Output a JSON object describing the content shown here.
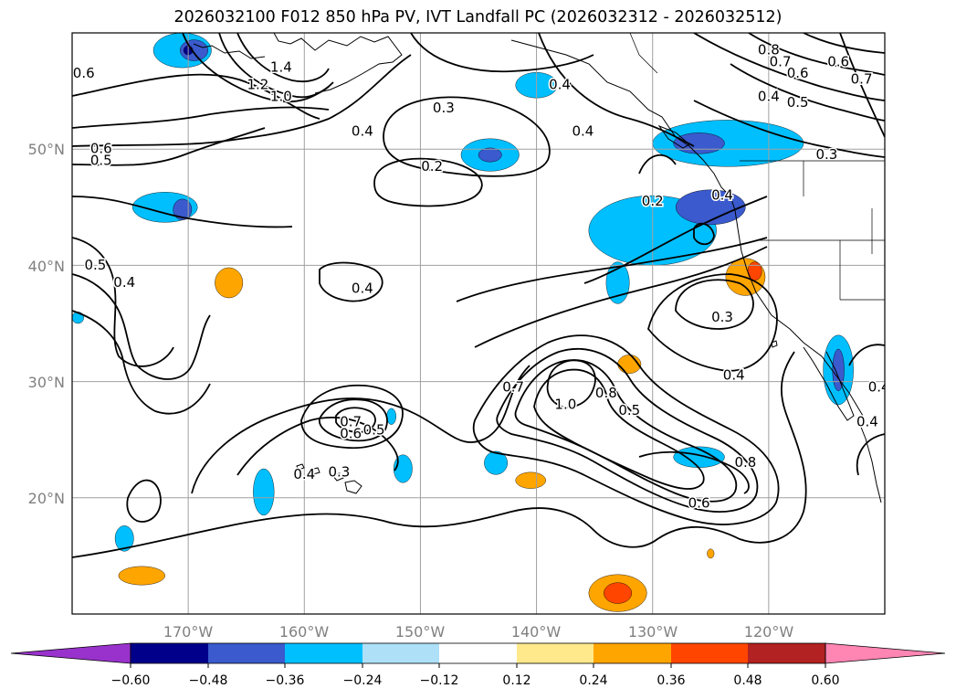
{
  "figure": {
    "title": "2026032100 F012 850 hPa PV, IVT Landfall PC (2026032312 - 2026032512)"
  },
  "axes": {
    "lon_labels": [
      "170°W",
      "160°W",
      "150°W",
      "140°W",
      "130°W",
      "120°W"
    ],
    "lat_labels": [
      "50°N",
      "40°N",
      "30°N",
      "20°N"
    ],
    "extent": {
      "lon_min": -180,
      "lon_max": -110,
      "lat_min": 10,
      "lat_max": 60
    }
  },
  "colorbar": {
    "tick_labels": [
      "−0.60",
      "−0.48",
      "−0.36",
      "−0.24",
      "−0.12",
      "0.12",
      "0.24",
      "0.36",
      "0.48",
      "0.60"
    ],
    "bin_colors": [
      "#9932cc",
      "#00008b",
      "#3a5acd",
      "#00bfff",
      "#aee0f8",
      "#ffffff",
      "#ffe98a",
      "#ffa500",
      "#ff4500",
      "#b22222",
      "#ff85b3"
    ]
  },
  "contour_labels": [
    {
      "text": "0.6",
      "lon": -179,
      "lat": 56.5
    },
    {
      "text": "1.4",
      "lon": -162,
      "lat": 57
    },
    {
      "text": "1.2",
      "lon": -164,
      "lat": 55.5
    },
    {
      "text": "1.0",
      "lon": -162,
      "lat": 54.5
    },
    {
      "text": "0.4",
      "lon": -138,
      "lat": 55.5
    },
    {
      "text": "0.3",
      "lon": -148,
      "lat": 53.5
    },
    {
      "text": "0.4",
      "lon": -155,
      "lat": 51.5
    },
    {
      "text": "0.4",
      "lon": -136,
      "lat": 51.5
    },
    {
      "text": "0.6",
      "lon": -177.5,
      "lat": 50
    },
    {
      "text": "0.5",
      "lon": -177.5,
      "lat": 49
    },
    {
      "text": "0.2",
      "lon": -149,
      "lat": 48.5
    },
    {
      "text": "0.2",
      "lon": -130,
      "lat": 45.5
    },
    {
      "text": "0.4",
      "lon": -124,
      "lat": 46
    },
    {
      "text": "0.8",
      "lon": -120,
      "lat": 58.5
    },
    {
      "text": "0.7",
      "lon": -119,
      "lat": 57.5
    },
    {
      "text": "0.6",
      "lon": -117.5,
      "lat": 56.5
    },
    {
      "text": "0.4",
      "lon": -120,
      "lat": 54.5
    },
    {
      "text": "0.5",
      "lon": -117.5,
      "lat": 54
    },
    {
      "text": "0.3",
      "lon": -115,
      "lat": 49.5
    },
    {
      "text": "0.6",
      "lon": -114,
      "lat": 57.5
    },
    {
      "text": "0.7",
      "lon": -112,
      "lat": 56
    },
    {
      "text": "0.5",
      "lon": -178,
      "lat": 40
    },
    {
      "text": "0.4",
      "lon": -175.5,
      "lat": 38.5
    },
    {
      "text": "0.4",
      "lon": -155,
      "lat": 38
    },
    {
      "text": "0.3",
      "lon": -124,
      "lat": 35.5
    },
    {
      "text": "0.4",
      "lon": -123,
      "lat": 30.5
    },
    {
      "text": "0.7",
      "lon": -142,
      "lat": 29.5
    },
    {
      "text": "1.0",
      "lon": -137.5,
      "lat": 28
    },
    {
      "text": "0.8",
      "lon": -134,
      "lat": 29
    },
    {
      "text": "0.5",
      "lon": -132,
      "lat": 27.5
    },
    {
      "text": "0.7",
      "lon": -156,
      "lat": 26.5
    },
    {
      "text": "0.6",
      "lon": -156,
      "lat": 25.5
    },
    {
      "text": "0.5",
      "lon": -154,
      "lat": 25.8
    },
    {
      "text": "0.4",
      "lon": -160,
      "lat": 22
    },
    {
      "text": "0.3",
      "lon": -157,
      "lat": 22.2
    },
    {
      "text": "0.6",
      "lon": -126,
      "lat": 19.5
    },
    {
      "text": "0.8",
      "lon": -122,
      "lat": 23
    },
    {
      "text": "0.4",
      "lon": -110.5,
      "lat": 29.5
    },
    {
      "text": "0.4",
      "lon": -111.5,
      "lat": 26.5
    }
  ],
  "shaded_regions": [
    {
      "id": "p1",
      "color": "#00bfff",
      "lon": -170.5,
      "lat": 58.5,
      "rlon": 2.5,
      "rlat": 1.5
    },
    {
      "id": "p2",
      "color": "#3a5acd",
      "lon": -169.5,
      "lat": 58.5,
      "rlon": 1.2,
      "rlat": 0.9
    },
    {
      "id": "p3",
      "color": "#00008b",
      "lon": -170,
      "lat": 58.5,
      "rlon": 0.4,
      "rlat": 0.4
    },
    {
      "id": "p4",
      "color": "#00bfff",
      "lon": -172,
      "lat": 45,
      "rlon": 2.8,
      "rlat": 1.3
    },
    {
      "id": "p5",
      "color": "#3a5acd",
      "lon": -170.5,
      "lat": 44.8,
      "rlon": 0.8,
      "rlat": 0.9
    },
    {
      "id": "p6",
      "color": "#00bfff",
      "lon": -144,
      "lat": 49.5,
      "rlon": 2.5,
      "rlat": 1.4
    },
    {
      "id": "p7",
      "color": "#3a5acd",
      "lon": -144,
      "lat": 49.5,
      "rlon": 1.0,
      "rlat": 0.6
    },
    {
      "id": "p8",
      "color": "#00bfff",
      "lon": -140,
      "lat": 55.5,
      "rlon": 1.8,
      "rlat": 1.1
    },
    {
      "id": "p9",
      "color": "#00bfff",
      "lon": -123.5,
      "lat": 50.5,
      "rlon": 6.5,
      "rlat": 2.0
    },
    {
      "id": "p10",
      "color": "#3a5acd",
      "lon": -126,
      "lat": 50.5,
      "rlon": 2.2,
      "rlat": 0.9
    },
    {
      "id": "p11",
      "color": "#00bfff",
      "lon": -130,
      "lat": 43,
      "rlon": 5.5,
      "rlat": 3.0
    },
    {
      "id": "p12",
      "color": "#3a5acd",
      "lon": -125,
      "lat": 45,
      "rlon": 3.0,
      "rlat": 1.5
    },
    {
      "id": "p13",
      "color": "#00bfff",
      "lon": -133,
      "lat": 38.5,
      "rlon": 1.0,
      "rlat": 1.8
    },
    {
      "id": "p14",
      "color": "#00bfff",
      "lon": -114,
      "lat": 31,
      "rlon": 1.3,
      "rlat": 3.0
    },
    {
      "id": "p15",
      "color": "#3a5acd",
      "lon": -114,
      "lat": 31,
      "rlon": 0.5,
      "rlat": 1.8
    },
    {
      "id": "p16",
      "color": "#00bfff",
      "lon": -126,
      "lat": 23.5,
      "rlon": 2.2,
      "rlat": 0.9
    },
    {
      "id": "p17",
      "color": "#00bfff",
      "lon": -143.5,
      "lat": 23,
      "rlon": 1.0,
      "rlat": 1.0
    },
    {
      "id": "p18",
      "color": "#00bfff",
      "lon": -151.5,
      "lat": 22.5,
      "rlon": 0.8,
      "rlat": 1.2
    },
    {
      "id": "p19",
      "color": "#00bfff",
      "lon": -163.5,
      "lat": 20.5,
      "rlon": 0.9,
      "rlat": 2.0
    },
    {
      "id": "p20",
      "color": "#00bfff",
      "lon": -175.5,
      "lat": 16.5,
      "rlon": 0.8,
      "rlat": 1.1
    },
    {
      "id": "p21",
      "color": "#00bfff",
      "lon": -179.5,
      "lat": 35.5,
      "rlon": 0.5,
      "rlat": 0.5
    },
    {
      "id": "p22",
      "color": "#00bfff",
      "lon": -152.5,
      "lat": 27,
      "rlon": 0.4,
      "rlat": 0.7
    },
    {
      "id": "o1",
      "color": "#ffa500",
      "lon": -166.5,
      "lat": 38.5,
      "rlon": 1.2,
      "rlat": 1.3
    },
    {
      "id": "o2",
      "color": "#ffa500",
      "lon": -122,
      "lat": 39,
      "rlon": 1.7,
      "rlat": 1.6
    },
    {
      "id": "o3",
      "color": "#ff4500",
      "lon": -121.2,
      "lat": 39.5,
      "rlon": 0.6,
      "rlat": 0.8
    },
    {
      "id": "o4",
      "color": "#ffa500",
      "lon": -132,
      "lat": 31.5,
      "rlon": 1.0,
      "rlat": 0.8
    },
    {
      "id": "o5",
      "color": "#ffa500",
      "lon": -140.5,
      "lat": 21.5,
      "rlon": 1.3,
      "rlat": 0.7
    },
    {
      "id": "o6",
      "color": "#ffa500",
      "lon": -174,
      "lat": 13.3,
      "rlon": 2.0,
      "rlat": 0.8
    },
    {
      "id": "o7",
      "color": "#ffa500",
      "lon": -133,
      "lat": 11.8,
      "rlon": 2.5,
      "rlat": 1.6
    },
    {
      "id": "o8",
      "color": "#ff4500",
      "lon": -133,
      "lat": 11.8,
      "rlon": 1.2,
      "rlat": 0.9
    },
    {
      "id": "o9",
      "color": "#ffa500",
      "lon": -125,
      "lat": 15.2,
      "rlon": 0.3,
      "rlat": 0.4
    }
  ]
}
